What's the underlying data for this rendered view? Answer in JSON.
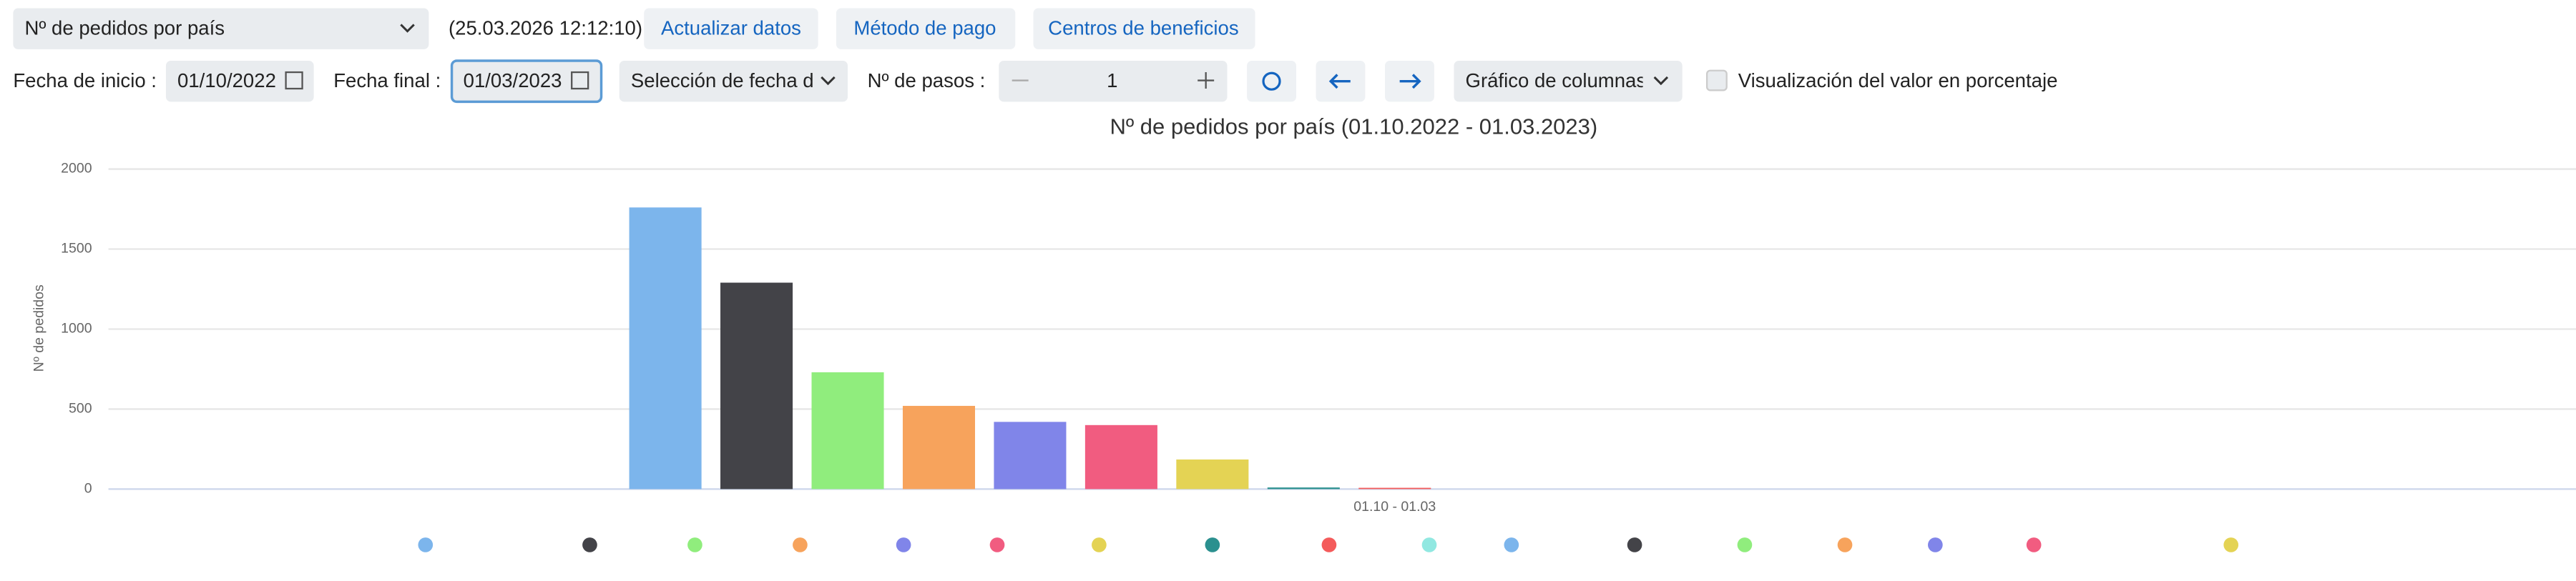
{
  "toolbar": {
    "report": "Nº de pedidos por país",
    "timestamp": "(25.03.2026 12:12:10)",
    "buttons": [
      "Actualizar datos",
      "Método de pago",
      "Centros de beneficios"
    ],
    "start_label": "Fecha de inicio :",
    "start_date": "01/10/2022",
    "end_label": "Fecha final :",
    "end_date": "01/03/2023",
    "date_selection": "Selección de fecha d",
    "steps_label": "Nº de pasos :",
    "steps": "1",
    "chart_type": "Gráfico de columnas",
    "percent_label": "Visualización del valor en porcentaje"
  },
  "chart_data": {
    "type": "bar",
    "title": "Nº de pedidos por país (01.10.2022 - 01.03.2023)",
    "y_label": "Nº de pedidos",
    "categories": [
      "01.10 - 01.03"
    ],
    "series": [
      {
        "color": "#7cb5ec",
        "values": [
          1760
        ]
      },
      {
        "color": "#434348",
        "values": [
          1290
        ]
      },
      {
        "color": "#90ed7d",
        "values": [
          730
        ]
      },
      {
        "color": "#f7a35c",
        "values": [
          520
        ]
      },
      {
        "color": "#8085e9",
        "values": [
          420
        ]
      },
      {
        "color": "#f15c80",
        "values": [
          400
        ]
      },
      {
        "color": "#e4d354",
        "values": [
          185
        ]
      },
      {
        "color": "#2b908f",
        "values": [
          10
        ]
      },
      {
        "color": "#f45b5b",
        "values": [
          8
        ]
      },
      {
        "color": "#91e8e1",
        "values": [
          0
        ]
      },
      {
        "color": "#7cb5ec",
        "values": [
          0
        ]
      },
      {
        "color": "#434348",
        "values": [
          0
        ]
      },
      {
        "color": "#90ed7d",
        "values": [
          0
        ]
      },
      {
        "color": "#f7a35c",
        "values": [
          0
        ]
      },
      {
        "color": "#8085e9",
        "values": [
          0
        ]
      },
      {
        "color": "#f15c80",
        "values": [
          0
        ]
      },
      {
        "color": "#e4d354",
        "values": [
          0
        ]
      }
    ],
    "ylim": [
      0,
      2000
    ],
    "yticks": [
      0,
      500,
      1000,
      1500,
      2000
    ],
    "grid": true
  }
}
